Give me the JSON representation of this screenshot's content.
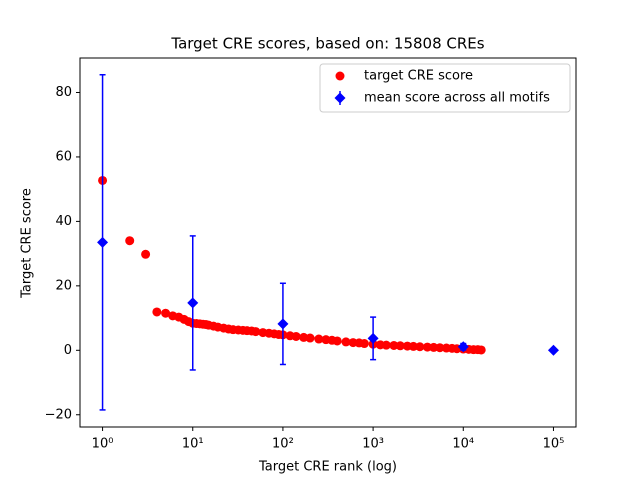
{
  "chart_data": {
    "type": "scatter",
    "title": "Target CRE scores, based on: 15808 CREs",
    "xlabel": "Target CRE rank (log)",
    "ylabel": "Target CRE score",
    "xscale": "log",
    "xlim": [
      0.562,
      177828
    ],
    "ylim": [
      -23.8,
      90.7
    ],
    "xticks": [
      {
        "value": 1,
        "label": "10⁰"
      },
      {
        "value": 10,
        "label": "10¹"
      },
      {
        "value": 100,
        "label": "10²"
      },
      {
        "value": 1000,
        "label": "10³"
      },
      {
        "value": 10000,
        "label": "10⁴"
      },
      {
        "value": 100000,
        "label": "10⁵"
      }
    ],
    "yticks": [
      {
        "value": -20,
        "label": "−20"
      },
      0,
      20,
      40,
      60,
      80
    ],
    "legend": "upper right",
    "series": [
      {
        "name": "target CRE score",
        "color": "#ff0000",
        "marker": "circle",
        "x": [
          1,
          2,
          3,
          4,
          5,
          6,
          7,
          8,
          9,
          10,
          11,
          12,
          13,
          14,
          15,
          17,
          19,
          22,
          25,
          28,
          32,
          36,
          40,
          45,
          50,
          60,
          70,
          80,
          90,
          100,
          120,
          140,
          170,
          200,
          250,
          300,
          350,
          400,
          500,
          600,
          700,
          800,
          1000,
          1200,
          1400,
          1700,
          2000,
          2400,
          2800,
          3300,
          4000,
          4700,
          5500,
          6500,
          7500,
          8500,
          10000,
          11500,
          13000,
          14500,
          15808
        ],
        "values": [
          52.7,
          34.0,
          29.8,
          11.9,
          11.5,
          10.7,
          10.3,
          9.6,
          8.9,
          8.4,
          8.3,
          8.2,
          8.1,
          8.0,
          7.8,
          7.5,
          7.2,
          6.9,
          6.6,
          6.4,
          6.3,
          6.2,
          6.1,
          6.0,
          5.8,
          5.5,
          5.3,
          5.1,
          4.9,
          4.8,
          4.5,
          4.3,
          4.0,
          3.8,
          3.5,
          3.3,
          3.1,
          2.9,
          2.6,
          2.4,
          2.3,
          2.1,
          1.9,
          1.7,
          1.6,
          1.5,
          1.4,
          1.3,
          1.2,
          1.1,
          1.0,
          0.9,
          0.8,
          0.7,
          0.6,
          0.5,
          0.4,
          0.3,
          0.2,
          0.2,
          0.1
        ]
      },
      {
        "name": "mean score across all motifs",
        "color": "#0000ff",
        "marker": "diamond",
        "x": [
          1,
          10,
          100,
          1000,
          10000,
          100000
        ],
        "values": [
          33.5,
          14.7,
          8.2,
          3.7,
          1.1,
          0
        ],
        "errors": [
          52.0,
          20.8,
          12.6,
          6.6,
          1.0,
          0
        ]
      }
    ]
  }
}
